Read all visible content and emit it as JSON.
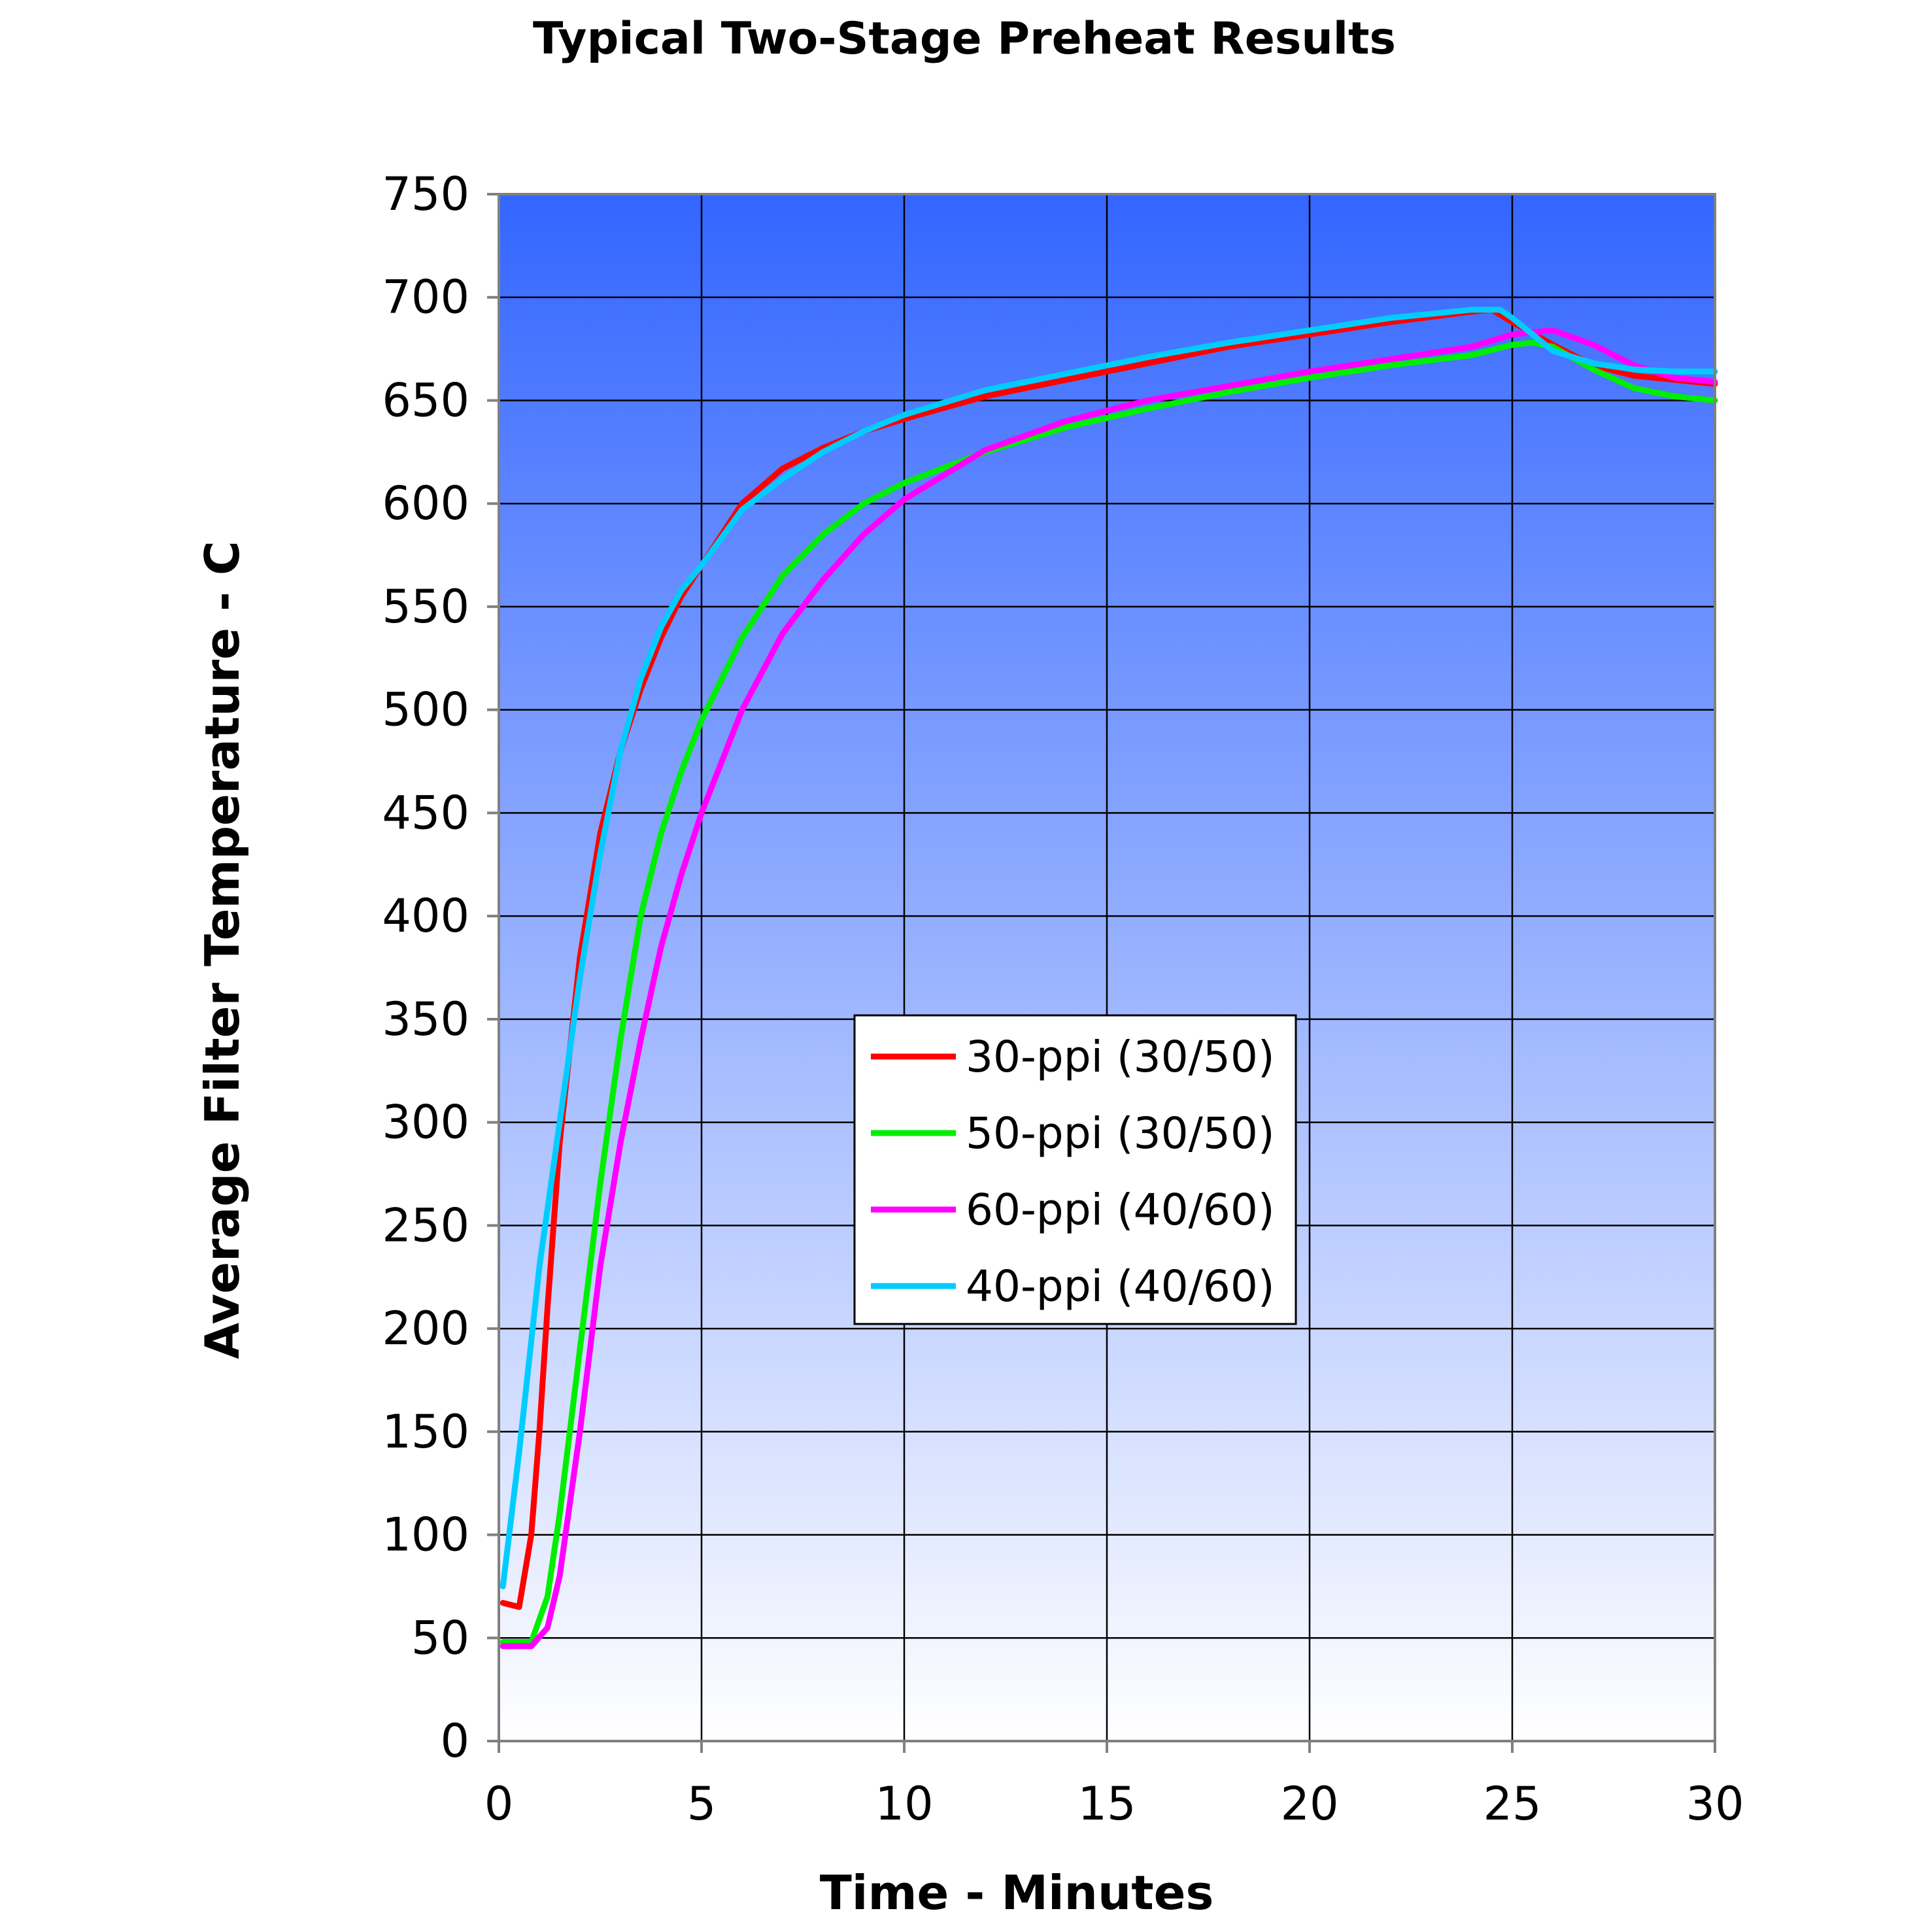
{
  "chart_data": {
    "type": "line",
    "title": "Typical Two-Stage Preheat Results",
    "xlabel": "Time - Minutes",
    "ylabel": "Average Filter Temperature - C",
    "xlim": [
      0,
      30
    ],
    "ylim": [
      0,
      750
    ],
    "xticks": [
      0,
      5,
      10,
      15,
      20,
      25,
      30
    ],
    "yticks": [
      0,
      50,
      100,
      150,
      200,
      250,
      300,
      350,
      400,
      450,
      500,
      550,
      600,
      650,
      700,
      750
    ],
    "grid": true,
    "legend_position": "center-right",
    "background": "vertical gradient blue to white",
    "series": [
      {
        "name": "30-ppi (30/50)",
        "color": "#ff0000",
        "x": [
          0.1,
          0.5,
          0.8,
          1.0,
          1.2,
          1.5,
          2.0,
          2.5,
          3.0,
          3.5,
          4.0,
          4.5,
          5.0,
          6.0,
          7.0,
          8.0,
          9.0,
          10.0,
          12.0,
          14.0,
          16.0,
          18.0,
          20.0,
          22.0,
          24.0,
          24.5,
          25.0,
          26.0,
          27.0,
          28.0,
          29.0,
          30.0
        ],
        "y": [
          67,
          65,
          100,
          150,
          210,
          290,
          380,
          440,
          480,
          510,
          535,
          555,
          570,
          600,
          617,
          627,
          635,
          641,
          652,
          660,
          668,
          676,
          682,
          688,
          693,
          694,
          688,
          677,
          667,
          662,
          660,
          658
        ]
      },
      {
        "name": "50-ppi (30/50)",
        "color": "#00ee00",
        "x": [
          0.1,
          0.8,
          1.2,
          1.5,
          2.0,
          2.5,
          3.0,
          3.5,
          4.0,
          4.5,
          5.0,
          6.0,
          7.0,
          8.0,
          9.0,
          10.0,
          12.0,
          14.0,
          16.0,
          18.0,
          20.0,
          22.0,
          24.0,
          25.0,
          25.5,
          26.0,
          27.0,
          28.0,
          29.0,
          30.0
        ],
        "y": [
          48,
          48,
          70,
          110,
          190,
          270,
          340,
          400,
          440,
          470,
          495,
          535,
          565,
          585,
          600,
          610,
          625,
          637,
          646,
          654,
          661,
          667,
          672,
          677,
          678,
          676,
          665,
          656,
          652,
          650
        ]
      },
      {
        "name": "60-ppi (40/60)",
        "color": "#ff00ff",
        "x": [
          0.1,
          0.8,
          1.2,
          1.5,
          2.0,
          2.5,
          3.0,
          3.5,
          4.0,
          4.5,
          5.0,
          6.0,
          7.0,
          8.0,
          9.0,
          10.0,
          12.0,
          14.0,
          16.0,
          18.0,
          20.0,
          22.0,
          24.0,
          25.0,
          26.0,
          27.0,
          28.0,
          29.0,
          30.0
        ],
        "y": [
          46,
          46,
          55,
          80,
          150,
          230,
          290,
          340,
          385,
          420,
          450,
          500,
          537,
          563,
          585,
          602,
          626,
          640,
          650,
          657,
          664,
          670,
          676,
          682,
          684,
          677,
          667,
          661,
          659
        ]
      },
      {
        "name": "40-ppi (40/60)",
        "color": "#00ccff",
        "x": [
          0.1,
          0.5,
          1.0,
          1.5,
          2.0,
          2.5,
          3.0,
          3.5,
          4.0,
          4.5,
          5.0,
          6.0,
          7.0,
          8.0,
          9.0,
          10.0,
          12.0,
          14.0,
          16.0,
          18.0,
          20.0,
          22.0,
          24.0,
          24.7,
          25.0,
          25.5,
          26.0,
          27.0,
          28.0,
          29.0,
          30.0
        ],
        "y": [
          75,
          140,
          230,
          300,
          370,
          430,
          480,
          515,
          540,
          558,
          570,
          597,
          612,
          625,
          635,
          643,
          655,
          663,
          671,
          678,
          684,
          690,
          694,
          694,
          690,
          682,
          674,
          668,
          665,
          664,
          664
        ]
      }
    ]
  }
}
